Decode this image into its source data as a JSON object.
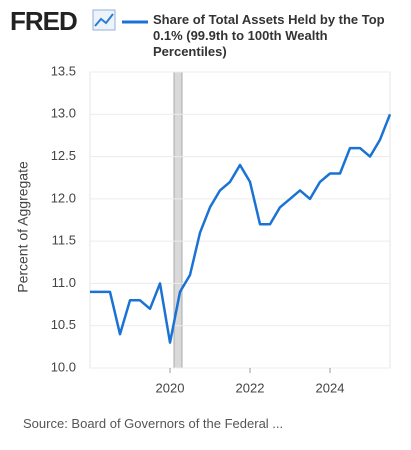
{
  "chart_data": {
    "type": "line",
    "y_label": "Percent of Aggregate",
    "source": "Source: Board of Governors of the Federal ...",
    "x": [
      2018,
      2018.25,
      2018.5,
      2018.75,
      2019,
      2019.25,
      2019.5,
      2019.75,
      2020,
      2020.25,
      2020.5,
      2020.75,
      2021,
      2021.25,
      2021.5,
      2021.75,
      2022,
      2022.25,
      2022.5,
      2022.75,
      2023,
      2023.25,
      2023.5,
      2023.75,
      2024,
      2024.25,
      2024.5,
      2024.75,
      2025,
      2025.25,
      2025.5
    ],
    "series": [
      {
        "name": "Share of Total Assets Held by the Top 0.1% (99.9th to 100th Wealth Percentiles)",
        "color": "#1a73d4",
        "values": [
          10.9,
          10.9,
          10.9,
          10.4,
          10.8,
          10.8,
          10.7,
          11.0,
          10.3,
          10.9,
          11.1,
          11.6,
          11.9,
          12.1,
          12.2,
          12.4,
          12.2,
          11.7,
          11.7,
          11.9,
          12.0,
          12.1,
          12.0,
          12.2,
          12.3,
          12.3,
          12.6,
          12.6,
          12.5,
          12.7,
          13.0
        ]
      }
    ],
    "xlim": [
      2018,
      2025.5
    ],
    "xticks": [
      2020,
      2022,
      2024
    ],
    "ylim": [
      10,
      13.5
    ],
    "yticks": [
      {
        "value": 10,
        "label": "10.0"
      },
      10.5,
      {
        "value": 11,
        "label": "11.0"
      },
      11.5,
      {
        "value": 12,
        "label": "12.0"
      },
      12.5,
      {
        "value": 13,
        "label": "13.0"
      },
      13.5
    ],
    "recessions": [
      [
        2020.1,
        2020.3
      ]
    ],
    "recession_color": "#d9d9d9",
    "grid": true
  }
}
